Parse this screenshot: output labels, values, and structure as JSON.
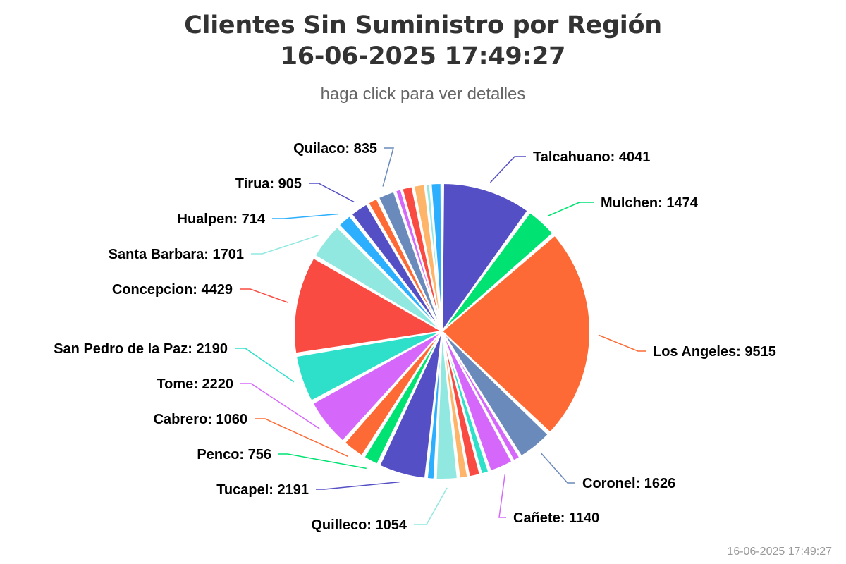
{
  "chart_data": {
    "type": "pie",
    "title_lines": [
      "Clientes Sin Suministro por Región",
      "16-06-2025 17:49:27"
    ],
    "subtitle": "haga click para ver detalles",
    "timestamp": "16-06-2025 17:49:27",
    "slices": [
      {
        "label": "Talcahuano",
        "value": 4041,
        "color": "#544fc5",
        "labeled": true
      },
      {
        "label": "Mulchen",
        "value": 1474,
        "color": "#00e272",
        "labeled": true
      },
      {
        "label": "Los Angeles",
        "value": 9515,
        "color": "#fe6a35",
        "labeled": true
      },
      {
        "label": "Coronel",
        "value": 1626,
        "color": "#6b8abc",
        "labeled": true
      },
      {
        "label": "",
        "value": 350,
        "color": "#d568fb",
        "labeled": false
      },
      {
        "label": "Cañete",
        "value": 1140,
        "color": "#d568fb",
        "labeled": true
      },
      {
        "label": "",
        "value": 380,
        "color": "#2ee0ca",
        "labeled": false
      },
      {
        "label": "",
        "value": 560,
        "color": "#fa4b42",
        "labeled": false
      },
      {
        "label": "",
        "value": 420,
        "color": "#feb56a",
        "labeled": false
      },
      {
        "label": "Quilleco",
        "value": 1054,
        "color": "#91e8e1",
        "labeled": true
      },
      {
        "label": "",
        "value": 360,
        "color": "#2caffe",
        "labeled": false
      },
      {
        "label": "Tucapel",
        "value": 2191,
        "color": "#544fc5",
        "labeled": true
      },
      {
        "label": "Penco",
        "value": 756,
        "color": "#00e272",
        "labeled": true
      },
      {
        "label": "Cabrero",
        "value": 1060,
        "color": "#fe6a35",
        "labeled": true
      },
      {
        "label": "Tome",
        "value": 2220,
        "color": "#d568fb",
        "labeled": true
      },
      {
        "label": "San Pedro de la Paz",
        "value": 2190,
        "color": "#2ee0ca",
        "labeled": true
      },
      {
        "label": "Concepcion",
        "value": 4429,
        "color": "#fa4b42",
        "labeled": true
      },
      {
        "label": "Santa Barbara",
        "value": 1701,
        "color": "#91e8e1",
        "labeled": true
      },
      {
        "label": "Hualpen",
        "value": 714,
        "color": "#2caffe",
        "labeled": true
      },
      {
        "label": "Tirua",
        "value": 905,
        "color": "#544fc5",
        "labeled": true
      },
      {
        "label": "",
        "value": 480,
        "color": "#fe6a35",
        "labeled": false
      },
      {
        "label": "Quilaco",
        "value": 835,
        "color": "#6b8abc",
        "labeled": true
      },
      {
        "label": "",
        "value": 280,
        "color": "#d568fb",
        "labeled": false
      },
      {
        "label": "",
        "value": 520,
        "color": "#fa4b42",
        "labeled": false
      },
      {
        "label": "",
        "value": 560,
        "color": "#feb56a",
        "labeled": false
      },
      {
        "label": "",
        "value": 200,
        "color": "#91e8e1",
        "labeled": false
      },
      {
        "label": "",
        "value": 520,
        "color": "#2caffe",
        "labeled": false
      }
    ]
  }
}
